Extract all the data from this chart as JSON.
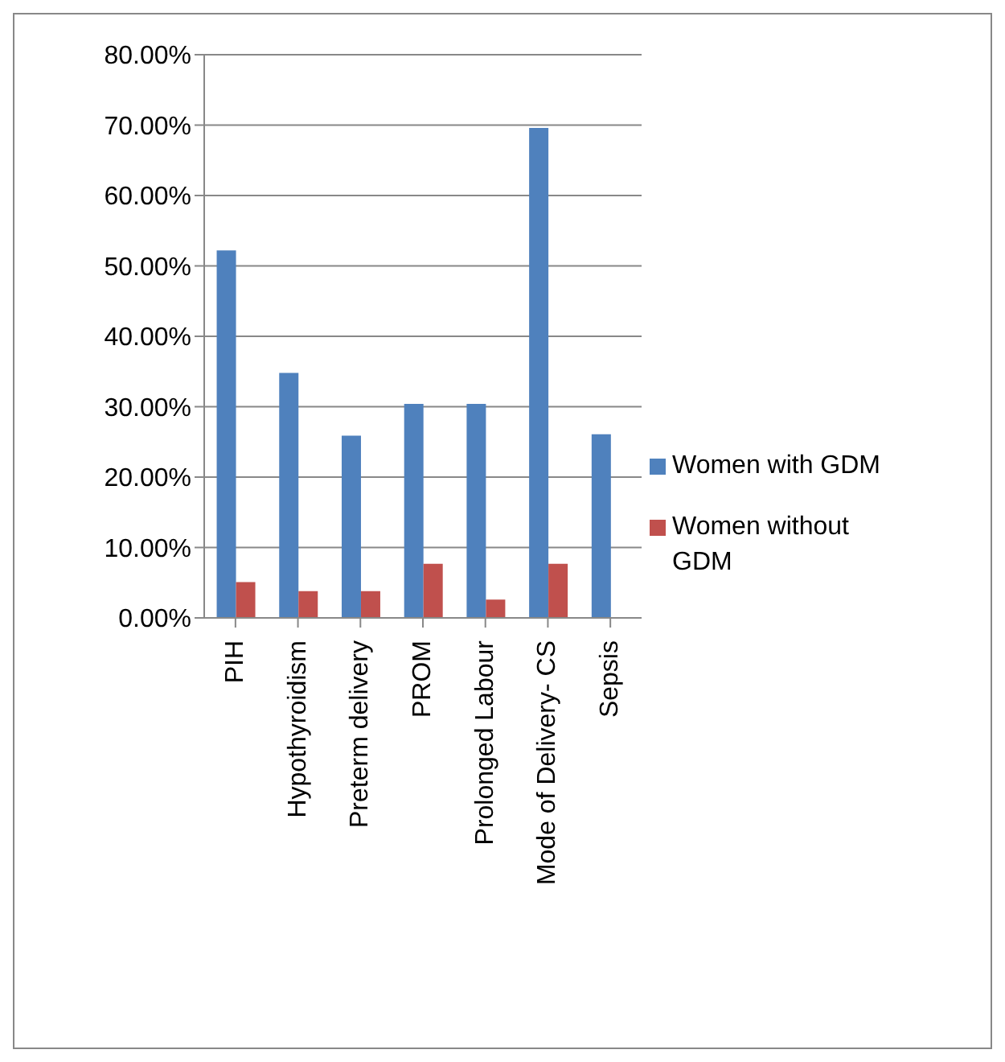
{
  "chart_data": {
    "type": "bar",
    "categories": [
      "PIH",
      "Hypothyroidism",
      "Preterm delivery",
      "PROM",
      "Prolonged Labour",
      "Mode of Delivery-  CS",
      "Sepsis"
    ],
    "series": [
      {
        "name": "Women with GDM",
        "color": "#4f81bd",
        "values": [
          52.2,
          34.8,
          25.9,
          30.4,
          30.4,
          69.6,
          26.1
        ]
      },
      {
        "name": "Women without GDM",
        "color": "#c0504d",
        "values": [
          5.1,
          3.8,
          3.8,
          7.7,
          2.6,
          7.7,
          0
        ]
      }
    ],
    "ylim": [
      0,
      80
    ],
    "yticks": [
      {
        "value": 0,
        "label": "0.00%"
      },
      {
        "value": 10,
        "label": "10.00%"
      },
      {
        "value": 20,
        "label": "20.00%"
      },
      {
        "value": 30,
        "label": "30.00%"
      },
      {
        "value": 40,
        "label": "40.00%"
      },
      {
        "value": 50,
        "label": "50.00%"
      },
      {
        "value": 60,
        "label": "60.00%"
      },
      {
        "value": 70,
        "label": "70.00%"
      },
      {
        "value": 80,
        "label": "80.00%"
      }
    ],
    "grid": "y",
    "legend": "right"
  }
}
